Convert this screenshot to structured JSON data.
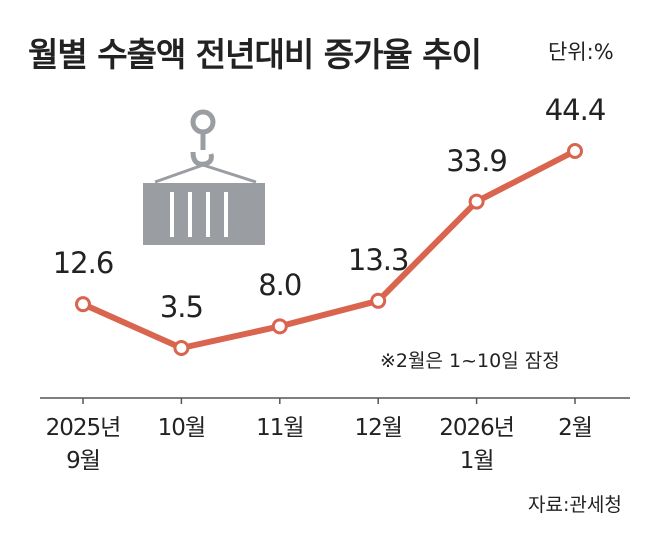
{
  "chart_data": {
    "type": "line",
    "title": "월별 수출액 전년대비 증가율 추이",
    "unit": "단위:%",
    "categories": [
      "2025년\n9월",
      "10월",
      "11월",
      "12월",
      "2026년\n1월",
      "2월"
    ],
    "values": [
      12.6,
      3.5,
      8.0,
      13.3,
      33.9,
      44.4
    ],
    "value_labels": [
      "12.6",
      "3.5",
      "8.0",
      "13.3",
      "33.9",
      "44.4"
    ],
    "color": "#d9654f",
    "note": "※2월은 1~10일 잠정",
    "source": "자료:관세청"
  }
}
